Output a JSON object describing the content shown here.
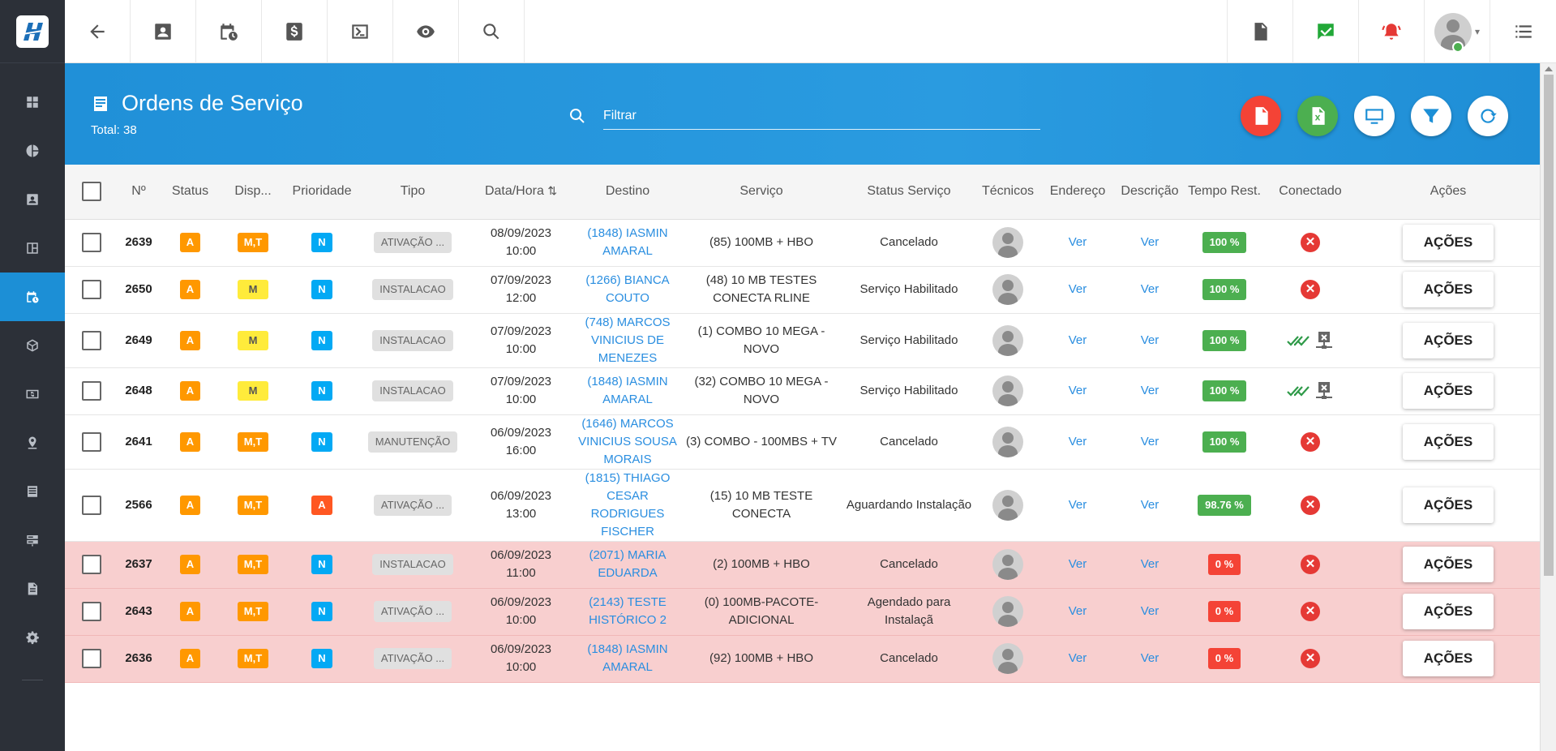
{
  "header": {
    "title": "Ordens de Serviço",
    "total": "Total: 38",
    "search_placeholder": "Filtrar"
  },
  "colors": {
    "accent": "#1c8fd6",
    "sidebar": "#2c3038",
    "late_row": "#f8cfcf"
  },
  "sidebar": {
    "items": [
      "dashboard-icon",
      "pie-chart-icon",
      "contacts-icon",
      "board-icon",
      "calendar-clock-icon",
      "cube-icon",
      "money-icon",
      "location-pin-icon",
      "list-icon",
      "server-icon",
      "document-icon",
      "settings-icon"
    ]
  },
  "topbar": {
    "left_icons": [
      "back-arrow-icon",
      "contact-card-icon",
      "calendar-clock-icon",
      "dollar-icon",
      "terminal-icon",
      "eye-icon",
      "search-icon"
    ],
    "right_icons": [
      "pdf-icon",
      "check-message-icon",
      "alarm-bell-icon",
      "user-avatar",
      "menu-list-icon"
    ]
  },
  "columns": {
    "num": "Nº",
    "status": "Status",
    "disp": "Disp...",
    "prioridade": "Prioridade",
    "tipo": "Tipo",
    "data": "Data/Hora",
    "destino": "Destino",
    "servico": "Serviço",
    "status_servico": "Status Serviço",
    "tecnicos": "Técnicos",
    "endereco": "Endereço",
    "descricao": "Descrição",
    "tempo": "Tempo Rest.",
    "conectado": "Conectado",
    "acoes": "Ações"
  },
  "rows": [
    {
      "num": "2639",
      "status": "A",
      "disp": "M,T",
      "prio": "N",
      "tipo": "ATIVAÇÃO ...",
      "data1": "08/09/2023",
      "data2": "10:00",
      "destino": "(1848) IASMIN AMARAL",
      "servico": "(85) 100MB + HBO",
      "status_servico": "Cancelado",
      "endereco": "Ver",
      "descricao": "Ver",
      "tempo": "100 %",
      "conectado": "no",
      "acoes": "AÇÕES"
    },
    {
      "num": "2650",
      "status": "A",
      "disp": "M",
      "prio": "N",
      "tipo": "INSTALACAO",
      "data1": "07/09/2023",
      "data2": "12:00",
      "destino": "(1266) BIANCA COUTO",
      "servico": "(48) 10 MB TESTES CONECTA RLINE",
      "status_servico": "Serviço Habilitado",
      "endereco": "Ver",
      "descricao": "Ver",
      "tempo": "100 %",
      "conectado": "no",
      "acoes": "AÇÕES"
    },
    {
      "num": "2649",
      "status": "A",
      "disp": "M",
      "prio": "N",
      "tipo": "INSTALACAO",
      "data1": "07/09/2023",
      "data2": "10:00",
      "destino": "(748) MARCOS VINICIUS DE MENEZES",
      "servico": "(1) COMBO 10 MEGA - NOVO",
      "status_servico": "Serviço Habilitado",
      "endereco": "Ver",
      "descricao": "Ver",
      "tempo": "100 %",
      "conectado": "yes",
      "acoes": "AÇÕES"
    },
    {
      "num": "2648",
      "status": "A",
      "disp": "M",
      "prio": "N",
      "tipo": "INSTALACAO",
      "data1": "07/09/2023",
      "data2": "10:00",
      "destino": "(1848) IASMIN AMARAL",
      "servico": "(32) COMBO 10 MEGA - NOVO",
      "status_servico": "Serviço Habilitado",
      "endereco": "Ver",
      "descricao": "Ver",
      "tempo": "100 %",
      "conectado": "yes",
      "acoes": "AÇÕES"
    },
    {
      "num": "2641",
      "status": "A",
      "disp": "M,T",
      "prio": "N",
      "tipo": "MANUTENÇÃO",
      "data1": "06/09/2023",
      "data2": "16:00",
      "destino": "(1646) MARCOS VINICIUS SOUSA MORAIS",
      "servico": "(3) COMBO - 100MBS + TV",
      "status_servico": "Cancelado",
      "endereco": "Ver",
      "descricao": "Ver",
      "tempo": "100 %",
      "conectado": "no",
      "acoes": "AÇÕES"
    },
    {
      "num": "2566",
      "status": "A",
      "disp": "M,T",
      "prio": "A",
      "tipo": "ATIVAÇÃO ...",
      "data1": "06/09/2023",
      "data2": "13:00",
      "destino": "(1815) THIAGO CESAR RODRIGUES FISCHER",
      "servico": "(15) 10 MB TESTE CONECTA",
      "status_servico": "Aguardando Instalação",
      "endereco": "Ver",
      "descricao": "Ver",
      "tempo": "98.76 %",
      "conectado": "no",
      "acoes": "AÇÕES"
    },
    {
      "num": "2637",
      "status": "A",
      "disp": "M,T",
      "prio": "N",
      "tipo": "INSTALACAO",
      "data1": "06/09/2023",
      "data2": "11:00",
      "destino": "(2071) MARIA EDUARDA",
      "servico": "(2) 100MB + HBO",
      "status_servico": "Cancelado",
      "endereco": "Ver",
      "descricao": "Ver",
      "tempo": "0 %",
      "conectado": "no",
      "acoes": "AÇÕES"
    },
    {
      "num": "2643",
      "status": "A",
      "disp": "M,T",
      "prio": "N",
      "tipo": "ATIVAÇÃO ...",
      "data1": "06/09/2023",
      "data2": "10:00",
      "destino": "(2143) TESTE HISTÓRICO 2",
      "servico": "(0) 100MB-PACOTE-ADICIONAL",
      "status_servico": "Agendado para Instalaçã",
      "endereco": "Ver",
      "descricao": "Ver",
      "tempo": "0 %",
      "conectado": "no",
      "acoes": "AÇÕES"
    },
    {
      "num": "2636",
      "status": "A",
      "disp": "M,T",
      "prio": "N",
      "tipo": "ATIVAÇÃO ...",
      "data1": "06/09/2023",
      "data2": "10:00",
      "destino": "(1848) IASMIN AMARAL",
      "servico": "(92) 100MB + HBO",
      "status_servico": "Cancelado",
      "endereco": "Ver",
      "descricao": "Ver",
      "tempo": "0 %",
      "conectado": "no",
      "acoes": "AÇÕES"
    }
  ]
}
